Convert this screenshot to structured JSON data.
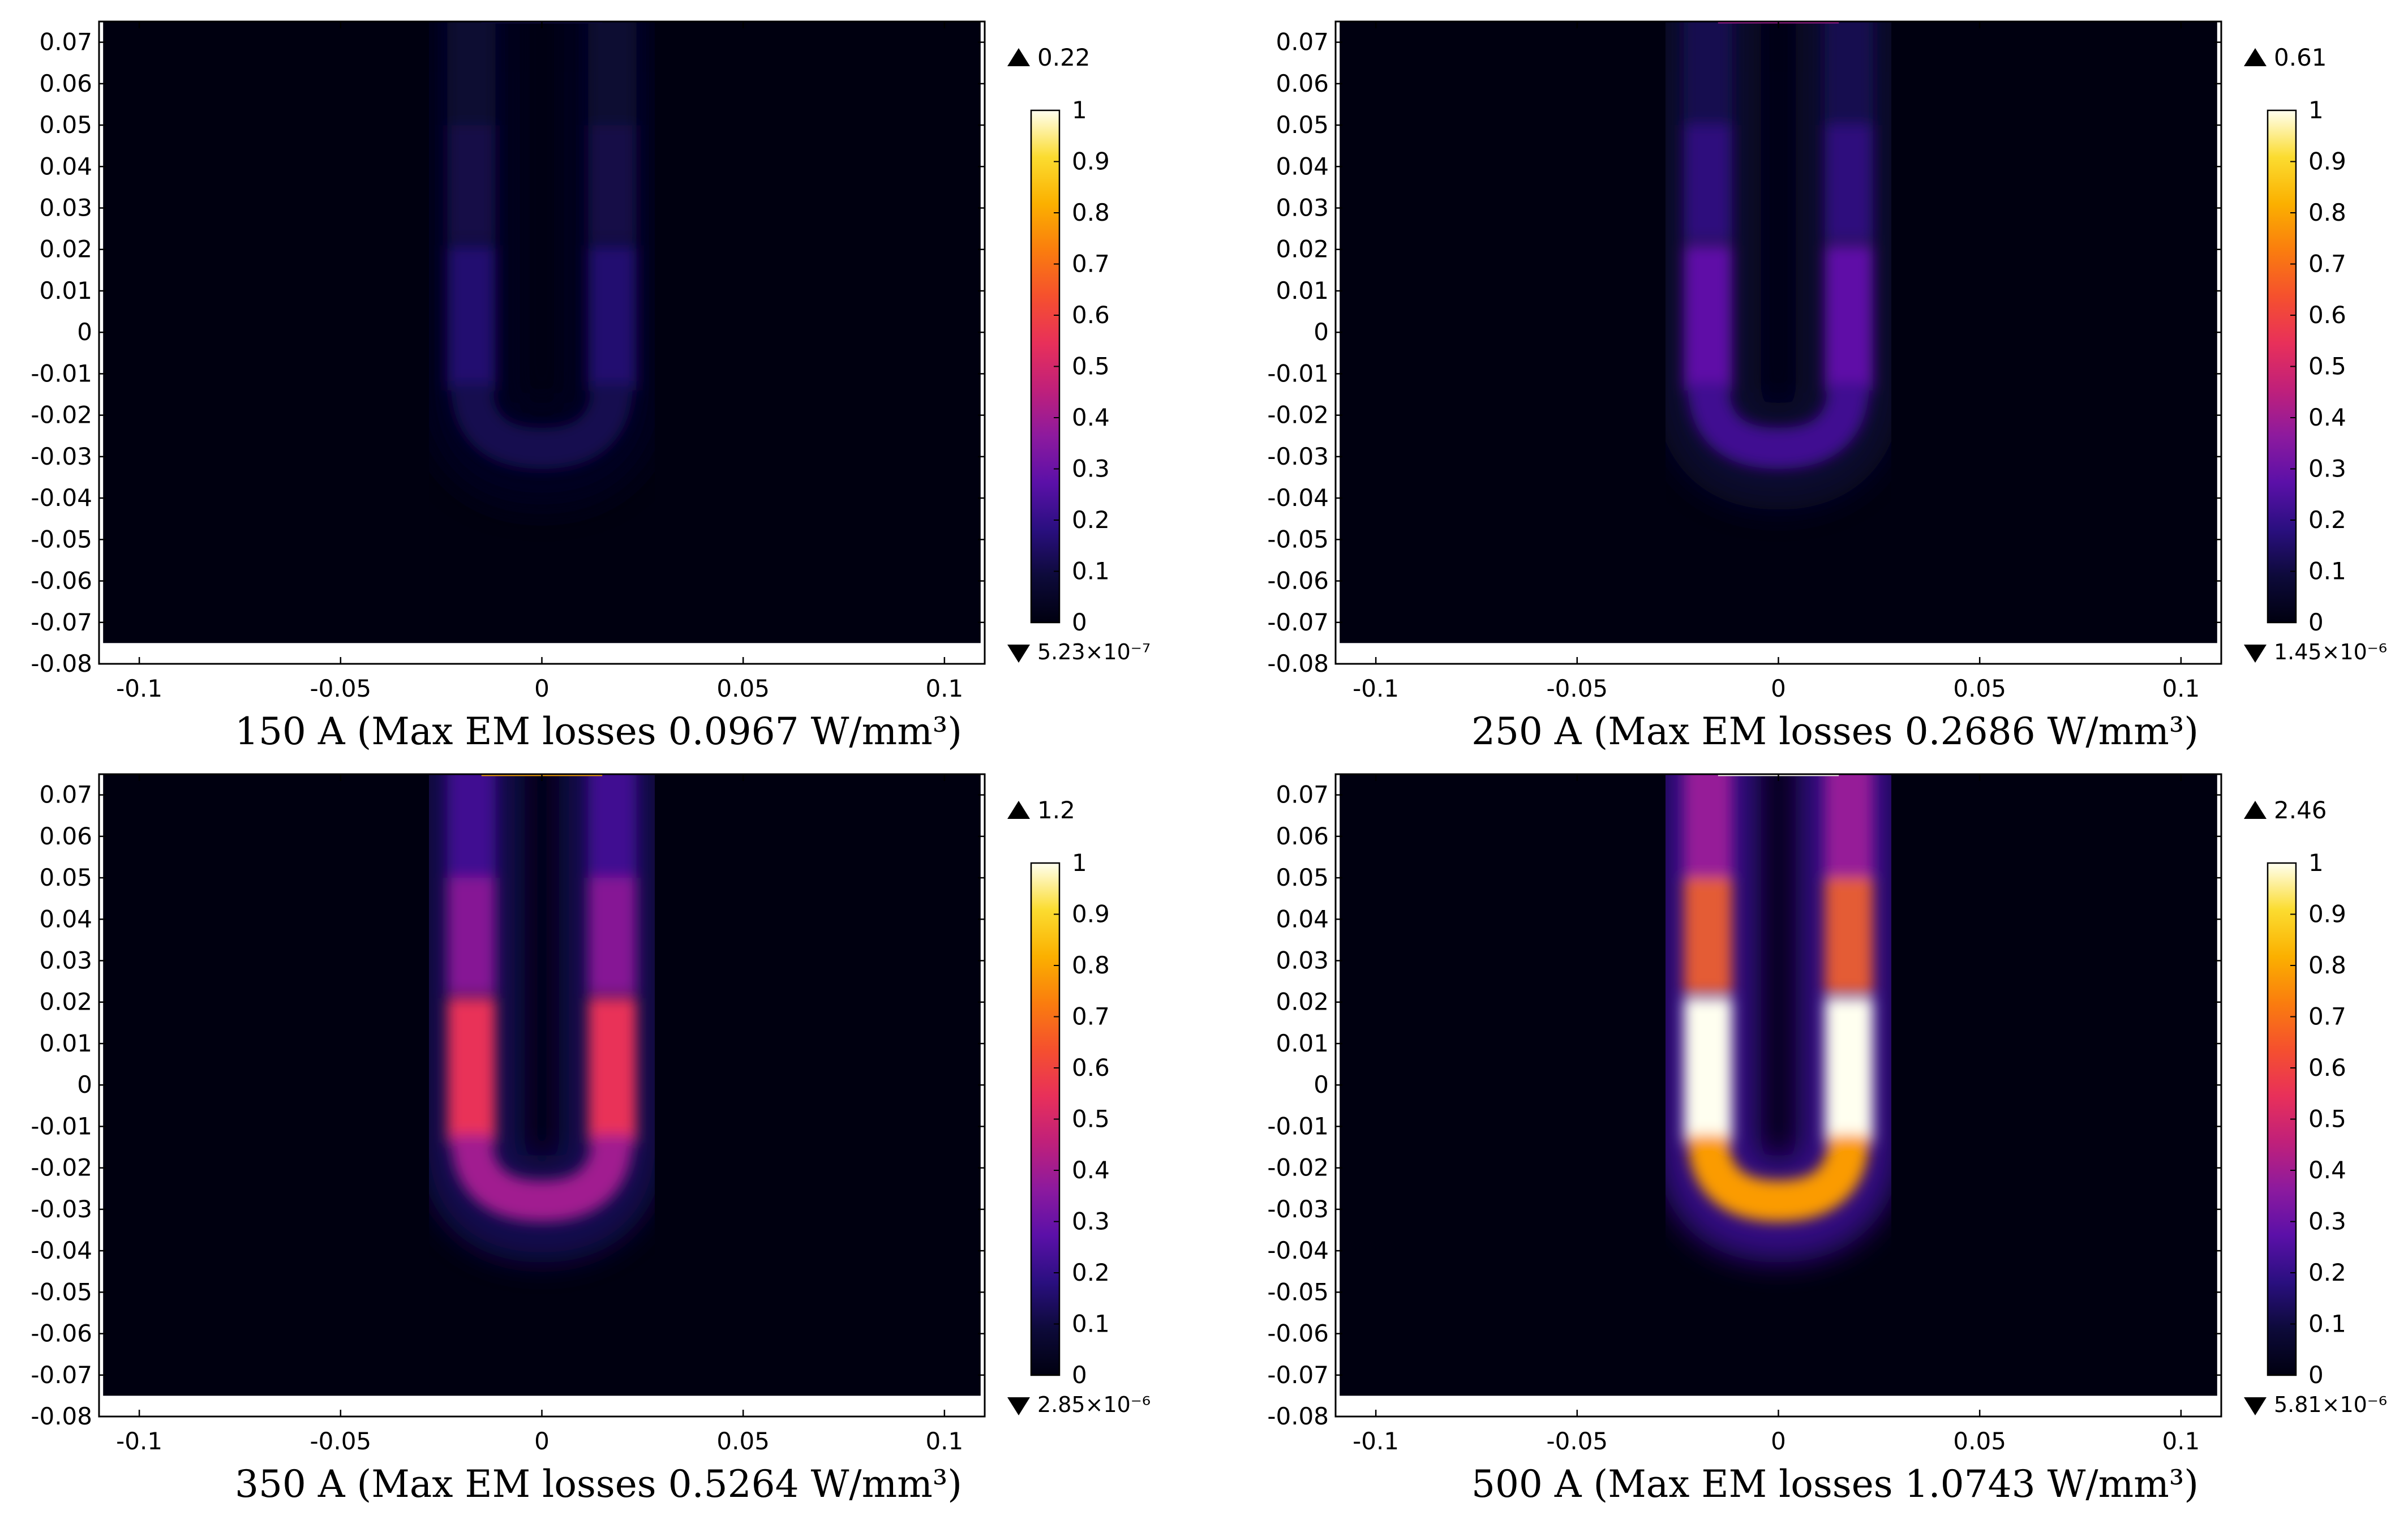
{
  "figure": {
    "colormap": [
      "#000010",
      "#0d0a3a",
      "#2a0f80",
      "#5b10a8",
      "#8d1a9e",
      "#c0207a",
      "#e8305a",
      "#f5502e",
      "#fa7d0e",
      "#fbb000",
      "#fbdc30",
      "#fffff0"
    ]
  },
  "chart_data": [
    {
      "type": "heatmap",
      "caption": "150 A (Max EM losses 0.0967 W/mm³)",
      "current_A": 150,
      "max_em_losses_W_per_mm3": 0.0967,
      "xlim": [
        -0.11,
        0.11
      ],
      "ylim": [
        -0.08,
        0.075
      ],
      "x_ticks": [
        "-0.1",
        "-0.05",
        "0",
        "0.05",
        "0.1"
      ],
      "y_ticks": [
        "0.07",
        "0.06",
        "0.05",
        "0.04",
        "0.03",
        "0.02",
        "0.01",
        "0",
        "-0.01",
        "-0.02",
        "-0.03",
        "-0.04",
        "-0.05",
        "-0.06",
        "-0.07",
        "-0.08"
      ],
      "colorbar": {
        "range": [
          0,
          1
        ],
        "ticks": [
          "1",
          "0.9",
          "0.8",
          "0.7",
          "0.6",
          "0.5",
          "0.4",
          "0.3",
          "0.2",
          "0.1",
          "0"
        ],
        "max_label": "0.22",
        "min_label": "5.23×10⁻⁷"
      },
      "field": {
        "sides_intensity": 0.16,
        "bend_intensity": 0.12,
        "top_intensity": 0.07,
        "lead_intensity": 0.06,
        "edge_intensity": 0.1
      }
    },
    {
      "type": "heatmap",
      "caption": "250 A (Max EM losses 0.2686 W/mm³)",
      "current_A": 250,
      "max_em_losses_W_per_mm3": 0.2686,
      "xlim": [
        -0.11,
        0.11
      ],
      "ylim": [
        -0.08,
        0.075
      ],
      "x_ticks": [
        "-0.1",
        "-0.05",
        "0",
        "0.05",
        "0.1"
      ],
      "y_ticks": [
        "0.07",
        "0.06",
        "0.05",
        "0.04",
        "0.03",
        "0.02",
        "0.01",
        "0",
        "-0.01",
        "-0.02",
        "-0.03",
        "-0.04",
        "-0.05",
        "-0.06",
        "-0.07",
        "-0.08"
      ],
      "colorbar": {
        "range": [
          0,
          1
        ],
        "ticks": [
          "1",
          "0.9",
          "0.8",
          "0.7",
          "0.6",
          "0.5",
          "0.4",
          "0.3",
          "0.2",
          "0.1",
          "0"
        ],
        "max_label": "0.61",
        "min_label": "1.45×10⁻⁶"
      },
      "field": {
        "sides_intensity": 0.28,
        "bend_intensity": 0.22,
        "top_intensity": 0.12,
        "lead_intensity": 0.1,
        "edge_intensity": 0.4
      }
    },
    {
      "type": "heatmap",
      "caption": "350 A (Max EM losses 0.5264 W/mm³)",
      "current_A": 350,
      "max_em_losses_W_per_mm3": 0.5264,
      "xlim": [
        -0.11,
        0.11
      ],
      "ylim": [
        -0.08,
        0.075
      ],
      "x_ticks": [
        "-0.1",
        "-0.05",
        "0",
        "0.05",
        "0.1"
      ],
      "y_ticks": [
        "0.07",
        "0.06",
        "0.05",
        "0.04",
        "0.03",
        "0.02",
        "0.01",
        "0",
        "-0.01",
        "-0.02",
        "-0.03",
        "-0.04",
        "-0.05",
        "-0.06",
        "-0.07",
        "-0.08"
      ],
      "colorbar": {
        "range": [
          0,
          1
        ],
        "ticks": [
          "1",
          "0.9",
          "0.8",
          "0.7",
          "0.6",
          "0.5",
          "0.4",
          "0.3",
          "0.2",
          "0.1",
          "0"
        ],
        "max_label": "1.2",
        "min_label": "2.85×10⁻⁶"
      },
      "field": {
        "sides_intensity": 0.55,
        "bend_intensity": 0.4,
        "top_intensity": 0.22,
        "lead_intensity": 0.18,
        "edge_intensity": 0.8
      }
    },
    {
      "type": "heatmap",
      "caption": "500 A (Max EM losses 1.0743 W/mm³)",
      "current_A": 500,
      "max_em_losses_W_per_mm3": 1.0743,
      "xlim": [
        -0.11,
        0.11
      ],
      "ylim": [
        -0.08,
        0.075
      ],
      "x_ticks": [
        "-0.1",
        "-0.05",
        "0",
        "0.05",
        "0.1"
      ],
      "y_ticks": [
        "0.07",
        "0.06",
        "0.05",
        "0.04",
        "0.03",
        "0.02",
        "0.01",
        "0",
        "-0.01",
        "-0.02",
        "-0.03",
        "-0.04",
        "-0.05",
        "-0.06",
        "-0.07",
        "-0.08"
      ],
      "colorbar": {
        "range": [
          0,
          1
        ],
        "ticks": [
          "1",
          "0.9",
          "0.8",
          "0.7",
          "0.6",
          "0.5",
          "0.4",
          "0.3",
          "0.2",
          "0.1",
          "0"
        ],
        "max_label": "2.46",
        "min_label": "5.81×10⁻⁶"
      },
      "field": {
        "sides_intensity": 1.0,
        "bend_intensity": 0.78,
        "top_intensity": 0.38,
        "lead_intensity": 0.3,
        "edge_intensity": 1.0
      }
    }
  ]
}
